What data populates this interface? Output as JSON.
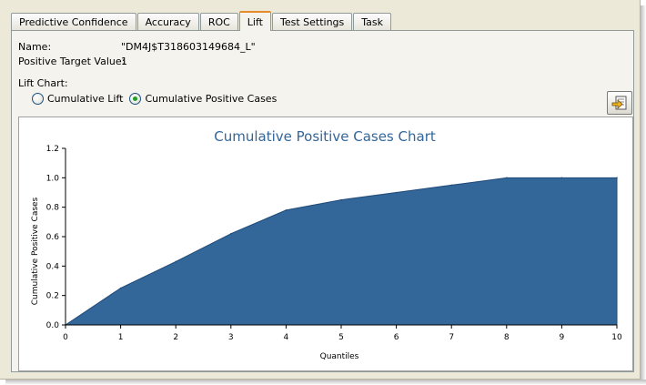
{
  "tabs": [
    {
      "label": "Predictive Confidence",
      "active": false
    },
    {
      "label": "Accuracy",
      "active": false
    },
    {
      "label": "ROC",
      "active": false
    },
    {
      "label": "Lift",
      "active": true
    },
    {
      "label": "Test Settings",
      "active": false
    },
    {
      "label": "Task",
      "active": false
    }
  ],
  "info": {
    "name_label": "Name:",
    "name_value": "\"DM4J$T318603149684_L\"",
    "target_label": "Positive Target Value:",
    "target_value": "1",
    "lift_chart_label": "Lift Chart:"
  },
  "options": {
    "cumulative_lift": "Cumulative Lift",
    "cumulative_positive_cases": "Cumulative Positive Cases",
    "selected": "cumulative_positive_cases"
  },
  "icons": {
    "export": "export-icon"
  },
  "colors": {
    "area_fill": "#336699",
    "title": "#336699",
    "tab_accent": "#e68b2c"
  },
  "chart_data": {
    "type": "area",
    "title": "Cumulative Positive Cases Chart",
    "xlabel": "Quantiles",
    "ylabel": "Cumulative Positive Cases",
    "x": [
      0,
      1,
      2,
      3,
      4,
      5,
      6,
      7,
      8,
      9,
      10
    ],
    "values": [
      0.0,
      0.25,
      0.43,
      0.62,
      0.78,
      0.85,
      0.9,
      0.95,
      1.0,
      1.0,
      1.0
    ],
    "xticks": [
      "0",
      "1",
      "2",
      "3",
      "4",
      "5",
      "6",
      "7",
      "8",
      "9",
      "10"
    ],
    "yticks": [
      "0.0",
      "0.2",
      "0.4",
      "0.6",
      "0.8",
      "1.0",
      "1.2"
    ],
    "xlim": [
      0,
      10
    ],
    "ylim": [
      0,
      1.2
    ],
    "grid": false
  }
}
